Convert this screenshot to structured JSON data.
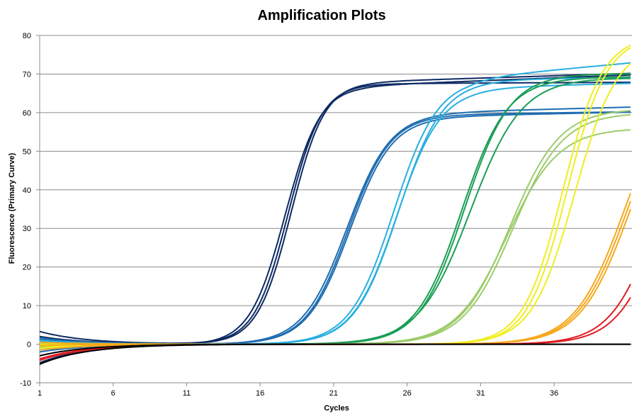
{
  "chart_data": {
    "type": "line",
    "title": "Amplification Plots",
    "xlabel": "Cycles",
    "ylabel": "Fluorescence (Primary Curve)",
    "xlim": [
      1,
      40
    ],
    "ylim": [
      -10,
      80
    ],
    "x_ticks": [
      1,
      6,
      11,
      16,
      21,
      26,
      31,
      36
    ],
    "y_ticks": [
      -10,
      0,
      10,
      20,
      30,
      40,
      50,
      60,
      70,
      80
    ],
    "grid": "horizontal",
    "legend": "none",
    "series": [
      {
        "color": "#0d2a63",
        "params": {
          "base": 3.3,
          "plateau": 67.5,
          "mid": 17.9,
          "slope": 1.15,
          "drift": 0.02
        }
      },
      {
        "color": "#0d2a63",
        "params": {
          "base": 2.0,
          "plateau": 68.0,
          "mid": 18.1,
          "slope": 1.15,
          "drift": 0.12
        }
      },
      {
        "color": "#0d2a63",
        "params": {
          "base": -4.8,
          "plateau": 67.0,
          "mid": 17.7,
          "slope": 1.2,
          "drift": 0.15
        }
      },
      {
        "color": "#1f6db0",
        "params": {
          "base": 1.6,
          "plateau": 59.5,
          "mid": 22.0,
          "slope": 1.45,
          "drift": 0.05
        }
      },
      {
        "color": "#1f6db0",
        "params": {
          "base": 1.2,
          "plateau": 59.0,
          "mid": 22.1,
          "slope": 1.45,
          "drift": 0.08
        }
      },
      {
        "color": "#1f6db0",
        "params": {
          "base": -2.0,
          "plateau": 60.0,
          "mid": 21.9,
          "slope": 1.5,
          "drift": 0.1
        }
      },
      {
        "color": "#28afe0",
        "params": {
          "base": 1.0,
          "plateau": 69.0,
          "mid": 25.1,
          "slope": 1.5,
          "drift": 0.35
        }
      },
      {
        "color": "#28afe0",
        "params": {
          "base": 0.6,
          "plateau": 68.5,
          "mid": 25.4,
          "slope": 1.5,
          "drift": 0.06
        }
      },
      {
        "color": "#28afe0",
        "params": {
          "base": -1.5,
          "plateau": 66.5,
          "mid": 25.3,
          "slope": 1.5,
          "drift": 0.1
        }
      },
      {
        "color": "#1a9e55",
        "params": {
          "base": 0.5,
          "plateau": 69.0,
          "mid": 29.7,
          "slope": 1.55,
          "drift": 0.05
        }
      },
      {
        "color": "#1a9e55",
        "params": {
          "base": 0.2,
          "plateau": 70.0,
          "mid": 29.9,
          "slope": 1.55,
          "drift": 0.02
        }
      },
      {
        "color": "#1a9e55",
        "params": {
          "base": -0.8,
          "plateau": 69.0,
          "mid": 30.3,
          "slope": 1.75,
          "drift": 0.0
        }
      },
      {
        "color": "#9ccc6a",
        "params": {
          "base": 0.3,
          "plateau": 61.0,
          "mid": 33.0,
          "slope": 1.7,
          "drift": 0.0
        }
      },
      {
        "color": "#9ccc6a",
        "params": {
          "base": -0.3,
          "plateau": 60.0,
          "mid": 33.2,
          "slope": 1.7,
          "drift": 0.0
        }
      },
      {
        "color": "#9ccc6a",
        "params": {
          "base": -1.0,
          "plateau": 56.0,
          "mid": 32.8,
          "slope": 1.75,
          "drift": 0.0
        }
      },
      {
        "color": "#f0ee1e",
        "params": {
          "base": 0.0,
          "plateau": 80.0,
          "mid": 36.6,
          "slope": 1.35,
          "drift": 0.0
        }
      },
      {
        "color": "#f0ee1e",
        "params": {
          "base": -0.5,
          "plateau": 80.0,
          "mid": 36.9,
          "slope": 1.35,
          "drift": 0.0
        }
      },
      {
        "color": "#f0ee1e",
        "params": {
          "base": -1.0,
          "plateau": 78.0,
          "mid": 37.4,
          "slope": 1.45,
          "drift": 0.0
        }
      },
      {
        "color": "#f7a81b",
        "params": {
          "base": 0.5,
          "plateau": 70.0,
          "mid": 40.8,
          "slope": 1.7,
          "drift": 0.0
        }
      },
      {
        "color": "#f7a81b",
        "params": {
          "base": -0.3,
          "plateau": 70.0,
          "mid": 41.0,
          "slope": 1.7,
          "drift": 0.0
        }
      },
      {
        "color": "#f7a81b",
        "params": {
          "base": -1.5,
          "plateau": 70.0,
          "mid": 41.2,
          "slope": 1.7,
          "drift": 0.0
        }
      },
      {
        "color": "#e11b22",
        "params": {
          "base": -4.2,
          "plateau": 70.0,
          "mid": 43.2,
          "slope": 1.6,
          "drift": 0.0
        }
      },
      {
        "color": "#e11b22",
        "params": {
          "base": -3.8,
          "plateau": 70.0,
          "mid": 43.7,
          "slope": 1.6,
          "drift": 0.0
        }
      },
      {
        "color": "#000000",
        "params": {
          "base": -5.2,
          "plateau": 0.0,
          "mid": 100,
          "slope": 1.0,
          "drift": 0.0
        }
      },
      {
        "color": "#000000",
        "params": {
          "base": -3.0,
          "plateau": 0.0,
          "mid": 100,
          "slope": 1.0,
          "drift": 0.0
        }
      }
    ]
  }
}
